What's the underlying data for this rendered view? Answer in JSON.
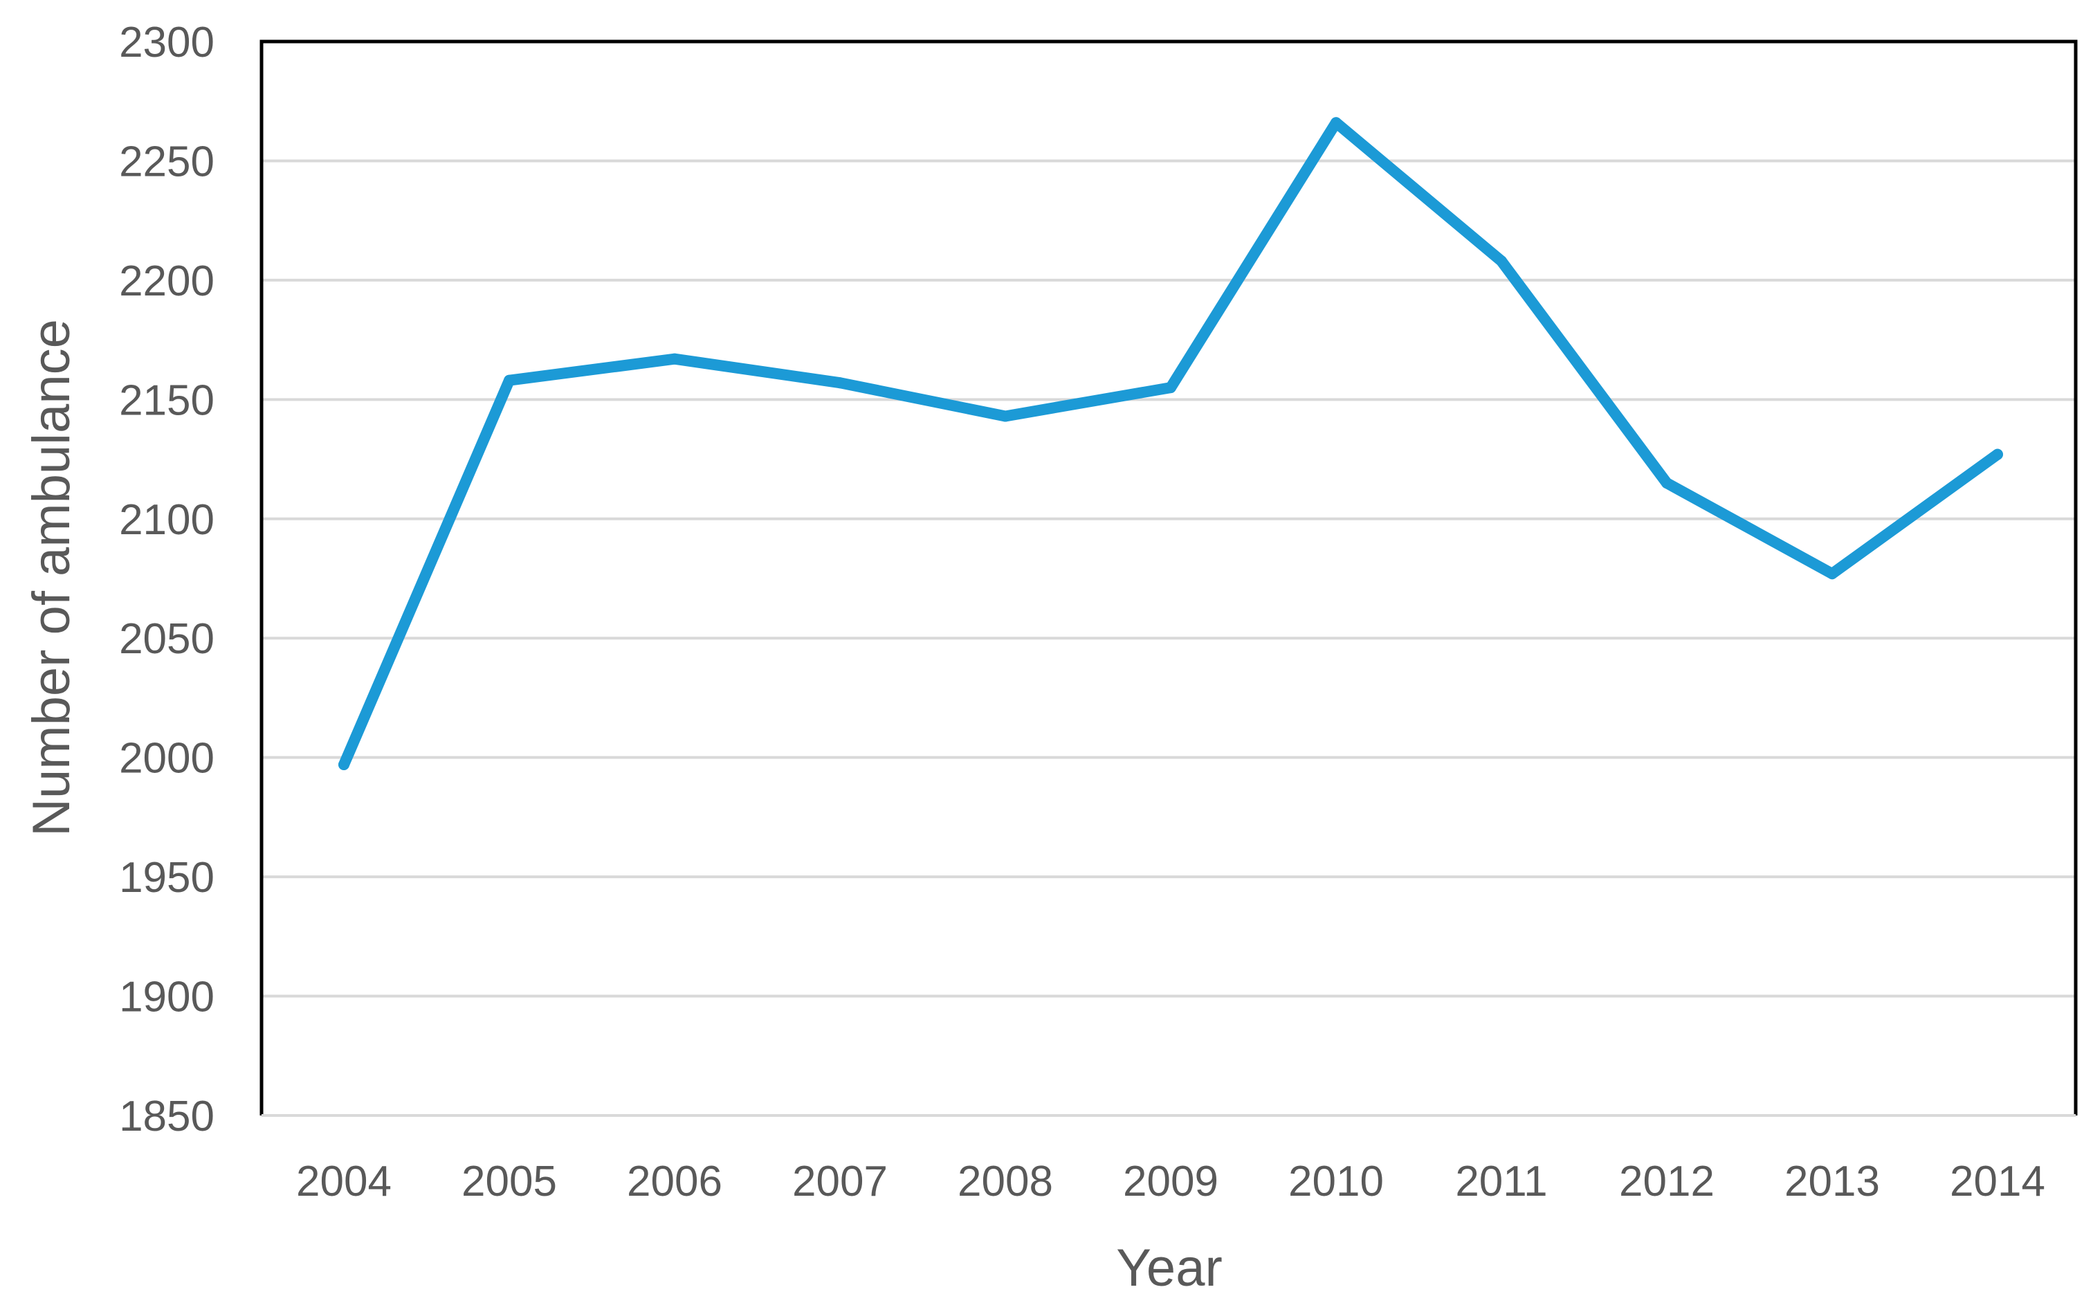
{
  "chart_data": {
    "type": "line",
    "title": "",
    "xlabel": "Year",
    "ylabel": "Number of ambulance",
    "x": [
      "2004",
      "2005",
      "2006",
      "2007",
      "2008",
      "2009",
      "2010",
      "2011",
      "2012",
      "2013",
      "2014"
    ],
    "series": [
      {
        "values": [
          1997,
          2158,
          2167,
          2157,
          2143,
          2155,
          2266,
          2208,
          2115,
          2077,
          2127
        ]
      }
    ],
    "ylim": [
      1850,
      2300
    ],
    "yticks": [
      "1850",
      "1900",
      "1950",
      "2000",
      "2050",
      "2100",
      "2150",
      "2200",
      "2250",
      "2300"
    ],
    "grid": true,
    "legend": "none",
    "colors": {
      "line": "#1c9ad6",
      "grid": "#d9d9d9",
      "frame": "#000000",
      "text": "#595959"
    }
  }
}
